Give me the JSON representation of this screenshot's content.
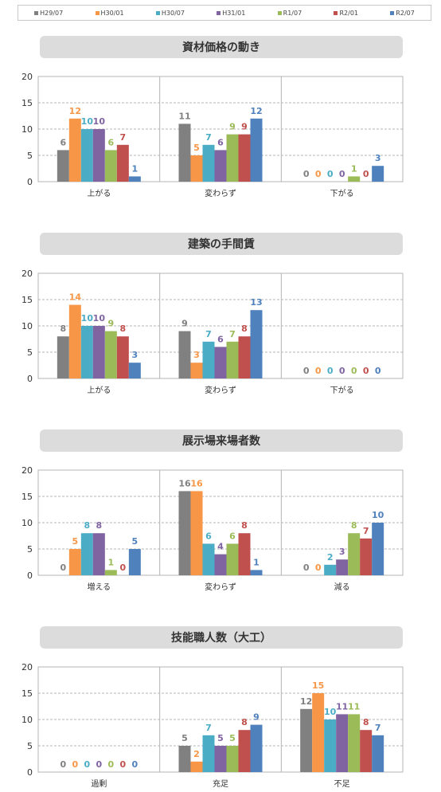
{
  "colors": [
    "#808080",
    "#f79646",
    "#4bacc6",
    "#8064a2",
    "#9bbb59",
    "#c0504d",
    "#4f81bd"
  ],
  "legend": [
    "H29/07",
    "H30/01",
    "H30/07",
    "H31/01",
    "R1/07",
    "R2/01",
    "R2/07"
  ],
  "chart_data": [
    {
      "type": "bar",
      "title": "資材価格の動き",
      "categories": [
        "上がる",
        "変わらず",
        "下がる"
      ],
      "series": [
        {
          "name": "H29/07",
          "values": [
            6,
            11,
            0
          ]
        },
        {
          "name": "H30/01",
          "values": [
            12,
            5,
            0
          ]
        },
        {
          "name": "H30/07",
          "values": [
            10,
            7,
            0
          ]
        },
        {
          "name": "H31/01",
          "values": [
            10,
            6,
            0
          ]
        },
        {
          "name": "R1/07",
          "values": [
            6,
            9,
            1
          ]
        },
        {
          "name": "R2/01",
          "values": [
            7,
            9,
            0
          ]
        },
        {
          "name": "R2/07",
          "values": [
            1,
            12,
            3
          ]
        }
      ],
      "yticks": [
        "0",
        "5",
        "10",
        "15",
        "20"
      ],
      "ylim": [
        0,
        20
      ],
      "grid": true,
      "legend": "top"
    },
    {
      "type": "bar",
      "title": "建築の手間賃",
      "categories": [
        "上がる",
        "変わらず",
        "下がる"
      ],
      "series": [
        {
          "name": "H29/07",
          "values": [
            8,
            9,
            0
          ]
        },
        {
          "name": "H30/01",
          "values": [
            14,
            3,
            0
          ]
        },
        {
          "name": "H30/07",
          "values": [
            10,
            7,
            0
          ]
        },
        {
          "name": "H31/01",
          "values": [
            10,
            6,
            0
          ]
        },
        {
          "name": "R1/07",
          "values": [
            9,
            7,
            0
          ]
        },
        {
          "name": "R2/01",
          "values": [
            8,
            8,
            0
          ]
        },
        {
          "name": "R2/07",
          "values": [
            3,
            13,
            0
          ]
        }
      ],
      "yticks": [
        "0",
        "5",
        "10",
        "15",
        "20"
      ],
      "ylim": [
        0,
        20
      ],
      "grid": true,
      "legend": "top"
    },
    {
      "type": "bar",
      "title": "展示場来場者数",
      "categories": [
        "増える",
        "変わらず",
        "減る"
      ],
      "series": [
        {
          "name": "H29/07",
          "values": [
            0,
            16,
            0
          ]
        },
        {
          "name": "H30/01",
          "values": [
            5,
            16,
            0
          ]
        },
        {
          "name": "H30/07",
          "values": [
            8,
            6,
            2
          ]
        },
        {
          "name": "H31/01",
          "values": [
            8,
            4,
            3
          ]
        },
        {
          "name": "R1/07",
          "values": [
            1,
            6,
            8
          ]
        },
        {
          "name": "R2/01",
          "values": [
            0,
            8,
            7
          ]
        },
        {
          "name": "R2/07",
          "values": [
            5,
            1,
            10
          ]
        }
      ],
      "yticks": [
        "0",
        "5",
        "10",
        "15",
        "20"
      ],
      "ylim": [
        0,
        20
      ],
      "grid": true,
      "legend": "top"
    },
    {
      "type": "bar",
      "title": "技能職人数（大工）",
      "categories": [
        "過剰",
        "充足",
        "不足"
      ],
      "series": [
        {
          "name": "H29/07",
          "values": [
            0,
            5,
            12
          ]
        },
        {
          "name": "H30/01",
          "values": [
            0,
            2,
            15
          ]
        },
        {
          "name": "H30/07",
          "values": [
            0,
            7,
            10
          ]
        },
        {
          "name": "H31/01",
          "values": [
            0,
            5,
            11
          ]
        },
        {
          "name": "R1/07",
          "values": [
            0,
            5,
            11
          ]
        },
        {
          "name": "R2/01",
          "values": [
            0,
            8,
            8
          ]
        },
        {
          "name": "R2/07",
          "values": [
            0,
            9,
            7
          ]
        }
      ],
      "yticks": [
        "0",
        "5",
        "10",
        "15",
        "20"
      ],
      "ylim": [
        0,
        20
      ],
      "grid": true,
      "legend": "top"
    }
  ]
}
